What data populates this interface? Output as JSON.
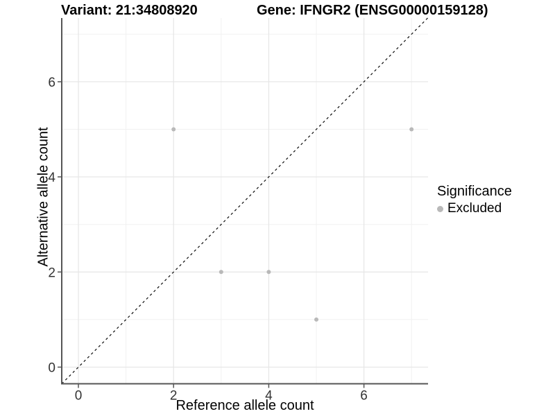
{
  "titles": {
    "variant": "Variant: 21:34808920",
    "gene": "Gene: IFNGR2 (ENSG00000159128)"
  },
  "legend": {
    "title": "Significance",
    "items": [
      {
        "label": "Excluded",
        "color": "#b9b9b9"
      }
    ]
  },
  "chart_data": {
    "type": "scatter",
    "xlabel": "Reference allele count",
    "ylabel": "Alternative allele count",
    "xlim": [
      -0.35,
      7.35
    ],
    "ylim": [
      -0.35,
      7.35
    ],
    "x_ticks": [
      0,
      2,
      4,
      6
    ],
    "y_ticks": [
      0,
      2,
      4,
      6
    ],
    "x_minor_ticks": [
      1,
      3,
      5,
      7
    ],
    "y_minor_ticks": [
      1,
      3,
      5,
      7
    ],
    "grid": true,
    "legend_position": "right",
    "series": [
      {
        "name": "Excluded",
        "color": "#b9b9b9",
        "points": [
          [
            2,
            5
          ],
          [
            3,
            2
          ],
          [
            4,
            2
          ],
          [
            5,
            1
          ],
          [
            7,
            5
          ]
        ]
      }
    ],
    "identity_line": {
      "present": true,
      "style": "dashed",
      "color": "#1a1a1a"
    },
    "style": {
      "major_grid_color": "#e7e7e7",
      "minor_grid_color": "#f1f1f1",
      "axis_line_color": "#555555",
      "tick_color": "#555555",
      "point_radius": 3
    }
  }
}
